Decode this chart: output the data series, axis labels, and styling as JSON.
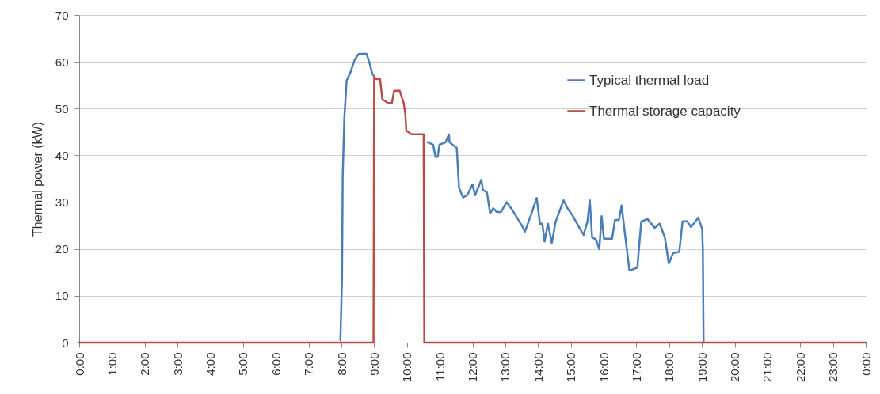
{
  "chart_data": {
    "type": "line",
    "ylabel": "Thermal power (kW)",
    "xlim": [
      0,
      24
    ],
    "xticks": [
      {
        "value": 0,
        "label": "0:00"
      },
      {
        "value": 1,
        "label": "1:00"
      },
      {
        "value": 2,
        "label": "2:00"
      },
      {
        "value": 3,
        "label": "3:00"
      },
      {
        "value": 4,
        "label": "4:00"
      },
      {
        "value": 5,
        "label": "5:00"
      },
      {
        "value": 6,
        "label": "6:00"
      },
      {
        "value": 7,
        "label": "7:00"
      },
      {
        "value": 8,
        "label": "8:00"
      },
      {
        "value": 9,
        "label": "9:00"
      },
      {
        "value": 10,
        "label": "10:00"
      },
      {
        "value": 11,
        "label": "11:00"
      },
      {
        "value": 12,
        "label": "12:00"
      },
      {
        "value": 13,
        "label": "13:00"
      },
      {
        "value": 14,
        "label": "14:00"
      },
      {
        "value": 15,
        "label": "15:00"
      },
      {
        "value": 16,
        "label": "16:00"
      },
      {
        "value": 17,
        "label": "17:00"
      },
      {
        "value": 18,
        "label": "18:00"
      },
      {
        "value": 19,
        "label": "19:00"
      },
      {
        "value": 20,
        "label": "20:00"
      },
      {
        "value": 21,
        "label": "21:00"
      },
      {
        "value": 22,
        "label": "22:00"
      },
      {
        "value": 23,
        "label": "23:00"
      },
      {
        "value": 24,
        "label": "0:00"
      }
    ],
    "ylim": [
      0,
      70
    ],
    "yticks": [
      0,
      10,
      20,
      30,
      40,
      50,
      60,
      70
    ],
    "grid": "y",
    "legend": "top right",
    "marker": "none",
    "line_style": "solid",
    "series": [
      {
        "name": "Typical thermal load",
        "color": "#4a7ebb",
        "x": [
          7.97,
          8.02,
          8.04,
          8.09,
          8.16,
          8.29,
          8.41,
          8.53,
          8.7,
          8.77,
          8.86,
          8.94,
          9.01,
          9.5,
          10.63,
          10.8,
          10.87,
          10.94,
          10.99,
          11.18,
          11.28,
          11.3,
          11.52,
          11.59,
          11.71,
          11.84,
          12.0,
          12.08,
          12.27,
          12.32,
          12.44,
          12.54,
          12.63,
          12.75,
          12.87,
          13.04,
          13.21,
          13.36,
          13.53,
          13.6,
          13.77,
          13.84,
          13.96,
          14.06,
          14.13,
          14.2,
          14.3,
          14.42,
          14.54,
          14.69,
          14.78,
          14.9,
          15.05,
          15.29,
          15.39,
          15.51,
          15.58,
          15.65,
          15.77,
          15.87,
          15.94,
          16.01,
          16.26,
          16.35,
          16.47,
          16.55,
          16.67,
          16.79,
          17.03,
          17.15,
          17.34,
          17.56,
          17.71,
          17.87,
          17.99,
          18.12,
          18.31,
          18.41,
          18.55,
          18.67,
          18.89,
          19.01,
          19.03,
          19.05
        ],
        "values": [
          0.5,
          14,
          35.5,
          48,
          56,
          58,
          60.5,
          61.7,
          61.7,
          61.7,
          59.7,
          57.5,
          56.8,
          null,
          42.8,
          42.3,
          39.7,
          39.7,
          42.3,
          42.8,
          44.5,
          42.8,
          41.6,
          33.1,
          31,
          31.5,
          33.8,
          31.5,
          34.8,
          32.6,
          32.1,
          27.6,
          28.7,
          27.9,
          27.9,
          30,
          28.4,
          26.7,
          24.7,
          23.7,
          27,
          28.4,
          30.9,
          25.4,
          25.4,
          21.6,
          25.4,
          21.3,
          25.9,
          28.7,
          30.4,
          28.7,
          27.2,
          24.2,
          23,
          25.9,
          30.4,
          22.5,
          22,
          20,
          27,
          22.2,
          22.2,
          26.2,
          26.2,
          29.3,
          22.2,
          15.4,
          16,
          25.9,
          26.4,
          24.5,
          25.4,
          22.5,
          16.9,
          19.1,
          19.4,
          25.9,
          25.9,
          24.7,
          26.7,
          24.2,
          19.4,
          0
        ]
      },
      {
        "name": "Thermal storage capacity",
        "color": "#be4b48",
        "x": [
          0,
          8.98,
          9.0,
          9.06,
          9.18,
          9.25,
          9.42,
          9.54,
          9.61,
          9.78,
          9.9,
          9.95,
          9.98,
          10.14,
          10.51,
          10.53,
          24
        ],
        "values": [
          0,
          0,
          56.8,
          56.3,
          56.3,
          52,
          51.2,
          51.2,
          53.8,
          53.8,
          51.2,
          49,
          45.3,
          44.5,
          44.5,
          0,
          0
        ]
      }
    ]
  }
}
